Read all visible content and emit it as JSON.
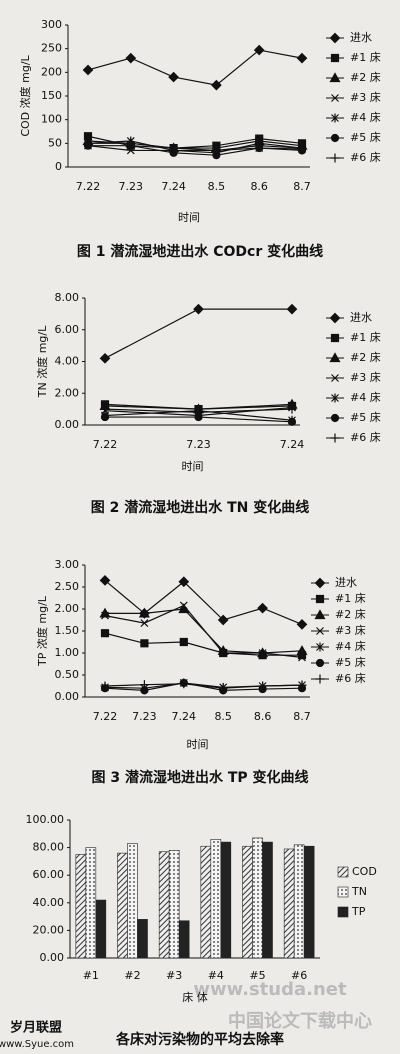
{
  "chart_data": [
    {
      "type": "line",
      "title": "图 1 潜流湿地进出水 CODcr 变化曲线",
      "y_label": "COD 浓度 mg/L",
      "x_label": "时间",
      "categories": [
        "7.22",
        "7.23",
        "7.24",
        "8.5",
        "8.6",
        "8.7"
      ],
      "ylim": [
        0,
        300
      ],
      "yticks": [
        0,
        50,
        100,
        150,
        200,
        250,
        300
      ],
      "series": [
        {
          "name": "进水",
          "color": "#111",
          "marker": "diamond",
          "values": [
            205,
            230,
            190,
            173,
            247,
            230
          ]
        },
        {
          "name": "#1 床",
          "color": "#111",
          "marker": "square",
          "values": [
            65,
            45,
            40,
            45,
            60,
            50
          ]
        },
        {
          "name": "#2 床",
          "color": "#111",
          "marker": "triangle",
          "values": [
            55,
            50,
            40,
            40,
            55,
            45
          ]
        },
        {
          "name": "#3 床",
          "color": "#111",
          "marker": "x",
          "values": [
            45,
            35,
            35,
            35,
            40,
            38
          ]
        },
        {
          "name": "#4 床",
          "color": "#111",
          "marker": "star",
          "values": [
            50,
            55,
            35,
            30,
            50,
            40
          ]
        },
        {
          "name": "#5 床",
          "color": "#111",
          "marker": "circle",
          "values": [
            45,
            45,
            30,
            25,
            40,
            35
          ]
        },
        {
          "name": "#6 床",
          "color": "#111",
          "marker": "plus",
          "values": [
            50,
            50,
            40,
            35,
            45,
            40
          ]
        }
      ]
    },
    {
      "type": "line",
      "title": "图 2 潜流湿地进出水 TN 变化曲线",
      "y_label": "TN 浓度 mg/L",
      "x_label": "时间",
      "categories": [
        "7.22",
        "7.23",
        "7.24"
      ],
      "ylim": [
        0,
        8
      ],
      "yticks": [
        {
          "value": 0,
          "label": "0.00"
        },
        {
          "value": 2,
          "label": "2.00"
        },
        {
          "value": 4,
          "label": "4.00"
        },
        {
          "value": 6,
          "label": "6.00"
        },
        {
          "value": 8,
          "label": "8.00"
        }
      ],
      "series": [
        {
          "name": "进水",
          "color": "#111",
          "marker": "diamond",
          "values": [
            4.2,
            7.3,
            7.3
          ]
        },
        {
          "name": "#1 床",
          "color": "#111",
          "marker": "square",
          "values": [
            1.3,
            1.0,
            1.2
          ]
        },
        {
          "name": "#2 床",
          "color": "#111",
          "marker": "triangle",
          "values": [
            1.2,
            1.0,
            1.3
          ]
        },
        {
          "name": "#3 床",
          "color": "#111",
          "marker": "x",
          "values": [
            0.9,
            0.6,
            1.1
          ]
        },
        {
          "name": "#4 床",
          "color": "#111",
          "marker": "star",
          "values": [
            0.6,
            0.9,
            0.3
          ]
        },
        {
          "name": "#5 床",
          "color": "#111",
          "marker": "circle",
          "values": [
            0.5,
            0.5,
            0.2
          ]
        },
        {
          "name": "#6 床",
          "color": "#111",
          "marker": "plus",
          "values": [
            1.0,
            0.8,
            1.0
          ]
        }
      ]
    },
    {
      "type": "line",
      "title": "图 3 潜流湿地进出水 TP 变化曲线",
      "y_label": "TP 浓度 mg/L",
      "x_label": "时间",
      "categories": [
        "7.22",
        "7.23",
        "7.24",
        "8.5",
        "8.6",
        "8.7"
      ],
      "ylim": [
        0,
        3
      ],
      "yticks": [
        {
          "value": 0,
          "label": "0.00"
        },
        {
          "value": 0.5,
          "label": "0.50"
        },
        {
          "value": 1,
          "label": "1.00"
        },
        {
          "value": 1.5,
          "label": "1.50"
        },
        {
          "value": 2,
          "label": "2.00"
        },
        {
          "value": 2.5,
          "label": "2.50"
        },
        {
          "value": 3,
          "label": "3.00"
        }
      ],
      "series": [
        {
          "name": "进水",
          "color": "#111",
          "marker": "diamond",
          "values": [
            2.65,
            1.9,
            2.62,
            1.75,
            2.02,
            1.65
          ]
        },
        {
          "name": "#1 床",
          "color": "#111",
          "marker": "square",
          "values": [
            1.45,
            1.22,
            1.25,
            1.0,
            0.95,
            0.95
          ]
        },
        {
          "name": "#2 床",
          "color": "#111",
          "marker": "triangle",
          "values": [
            1.9,
            1.9,
            2.0,
            1.05,
            1.0,
            1.05
          ]
        },
        {
          "name": "#3 床",
          "color": "#111",
          "marker": "x",
          "values": [
            1.85,
            1.68,
            2.08,
            1.0,
            1.0,
            0.9
          ]
        },
        {
          "name": "#4 床",
          "color": "#111",
          "marker": "star",
          "values": [
            0.22,
            0.2,
            0.32,
            0.22,
            0.25,
            0.27
          ]
        },
        {
          "name": "#5 床",
          "color": "#111",
          "marker": "circle",
          "values": [
            0.2,
            0.15,
            0.32,
            0.15,
            0.18,
            0.2
          ]
        },
        {
          "name": "#6 床",
          "color": "#111",
          "marker": "plus",
          "values": [
            0.25,
            0.28,
            0.3,
            0.2,
            0.25,
            0.27
          ]
        }
      ]
    },
    {
      "type": "bar",
      "title": "各床对污染物的平均去除率",
      "x_label": "床 体",
      "categories": [
        "#1",
        "#2",
        "#3",
        "#4",
        "#5",
        "#6"
      ],
      "ylim": [
        0,
        100
      ],
      "yticks": [
        {
          "value": 0,
          "label": "0.00"
        },
        {
          "value": 20,
          "label": "20.00"
        },
        {
          "value": 40,
          "label": "40.00"
        },
        {
          "value": 60,
          "label": "60.00"
        },
        {
          "value": 80,
          "label": "80.00"
        },
        {
          "value": 100,
          "label": "100.00"
        }
      ],
      "series": [
        {
          "name": "COD",
          "color": "#444",
          "pattern": "hatch",
          "values": [
            75,
            76,
            77,
            81,
            81,
            79
          ]
        },
        {
          "name": "TN",
          "color": "#444",
          "pattern": "dots",
          "values": [
            80,
            83,
            78,
            86,
            87,
            82
          ]
        },
        {
          "name": "TP",
          "color": "#222",
          "pattern": "solid",
          "values": [
            42,
            28,
            27,
            84,
            84,
            81
          ]
        }
      ]
    }
  ],
  "watermarks": [
    "www.studa.net",
    "中国论文下载中心",
    "岁月联盟",
    "www.Syue.com"
  ]
}
